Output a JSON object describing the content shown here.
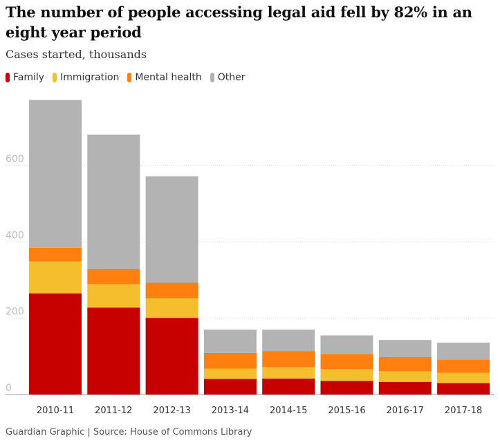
{
  "title": "The number of people accessing legal aid fell by 82% in an eight year period",
  "subtitle": "Cases started, thousands",
  "footer": {
    "credit": "Guardian Graphic",
    "separator": " | ",
    "source": "Source: House of Commons Library"
  },
  "legend": [
    {
      "label": "Family",
      "color": "#c70000"
    },
    {
      "label": "Immigration",
      "color": "#f5be2c"
    },
    {
      "label": "Mental health",
      "color": "#ff7f0f"
    },
    {
      "label": "Other",
      "color": "#b3b3b3"
    }
  ],
  "chart_data": {
    "type": "bar",
    "stacked": true,
    "title": "The number of people accessing legal aid fell by 82% in an eight year period",
    "ylabel": "Cases started, thousands",
    "xlabel": "",
    "ylim": [
      0,
      780
    ],
    "yticks": [
      0,
      200,
      400,
      600
    ],
    "grid": true,
    "categories": [
      "2010-11",
      "2011-12",
      "2012-13",
      "2013-14",
      "2014-15",
      "2015-16",
      "2016-17",
      "2017-18"
    ],
    "series": [
      {
        "name": "Family",
        "color": "#c70000",
        "values": [
          265,
          228,
          201,
          41,
          42,
          36,
          33,
          30
        ]
      },
      {
        "name": "Immigration",
        "color": "#f5be2c",
        "values": [
          84,
          61,
          51,
          27,
          30,
          31,
          28,
          27
        ]
      },
      {
        "name": "Mental health",
        "color": "#ff7f0f",
        "values": [
          36,
          40,
          41,
          41,
          42,
          39,
          37,
          35
        ]
      },
      {
        "name": "Other",
        "color": "#b3b3b3",
        "values": [
          387,
          352,
          279,
          61,
          56,
          49,
          45,
          44
        ]
      }
    ]
  }
}
